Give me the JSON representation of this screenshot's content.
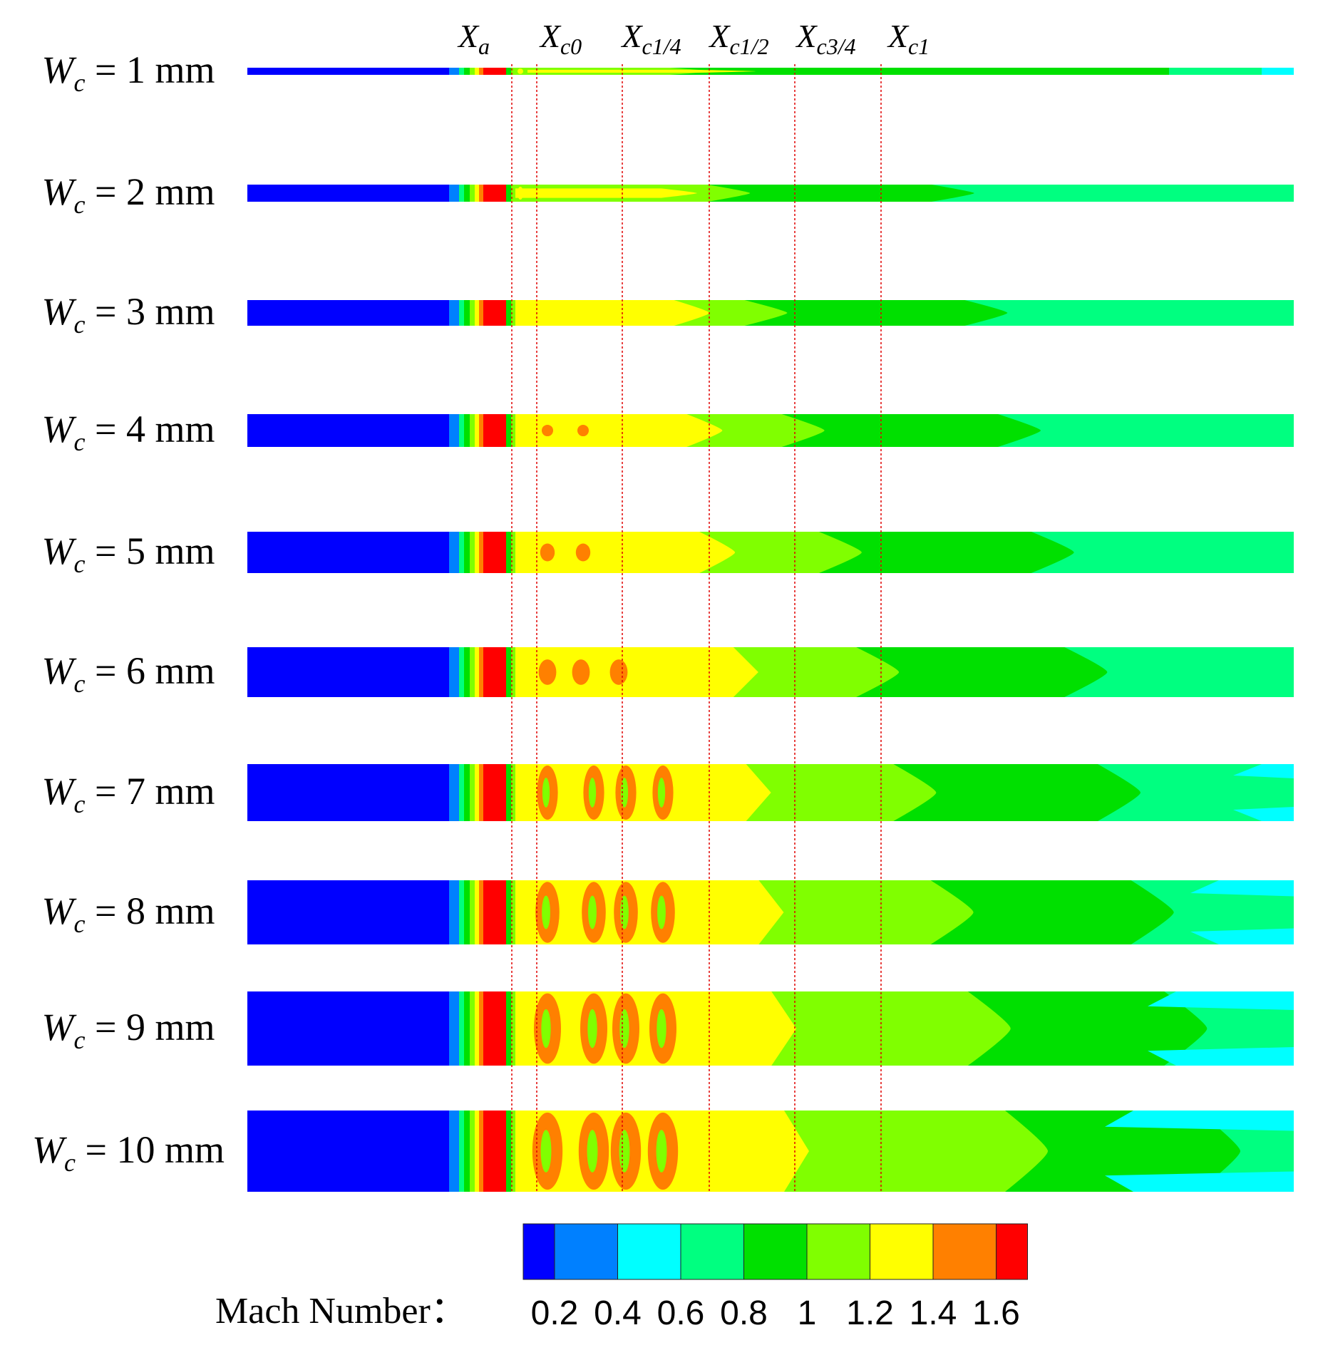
{
  "figure": {
    "station_markers": [
      {
        "base": "X",
        "sub": "a"
      },
      {
        "base": "X",
        "sub": "c0"
      },
      {
        "base": "X",
        "sub": "c1/4"
      },
      {
        "base": "X",
        "sub": "c1/2"
      },
      {
        "base": "X",
        "sub": "c3/4"
      },
      {
        "base": "X",
        "sub": "c1"
      }
    ],
    "rows": [
      {
        "var": "W",
        "sub": "c",
        "rest": " = 1 mm"
      },
      {
        "var": "W",
        "sub": "c",
        "rest": " = 2 mm"
      },
      {
        "var": "W",
        "sub": "c",
        "rest": " = 3 mm"
      },
      {
        "var": "W",
        "sub": "c",
        "rest": " = 4 mm"
      },
      {
        "var": "W",
        "sub": "c",
        "rest": " = 5 mm"
      },
      {
        "var": "W",
        "sub": "c",
        "rest": " = 6 mm"
      },
      {
        "var": "W",
        "sub": "c",
        "rest": " = 7 mm"
      },
      {
        "var": "W",
        "sub": "c",
        "rest": " = 8 mm"
      },
      {
        "var": "W",
        "sub": "c",
        "rest": " = 9 mm"
      },
      {
        "var": "W",
        "sub": "c",
        "rest": " = 10 mm"
      }
    ],
    "colorbar": {
      "label": "Mach Number：",
      "ticks": [
        "0.2",
        "0.4",
        "0.6",
        "0.8",
        "1",
        "1.2",
        "1.4",
        "1.6"
      ],
      "colors": [
        "#0000ff",
        "#0080ff",
        "#00ffff",
        "#00ff80",
        "#00e000",
        "#80ff00",
        "#ffff00",
        "#ff8000",
        "#ff0000"
      ]
    },
    "marker_line_color": "#e00000"
  }
}
